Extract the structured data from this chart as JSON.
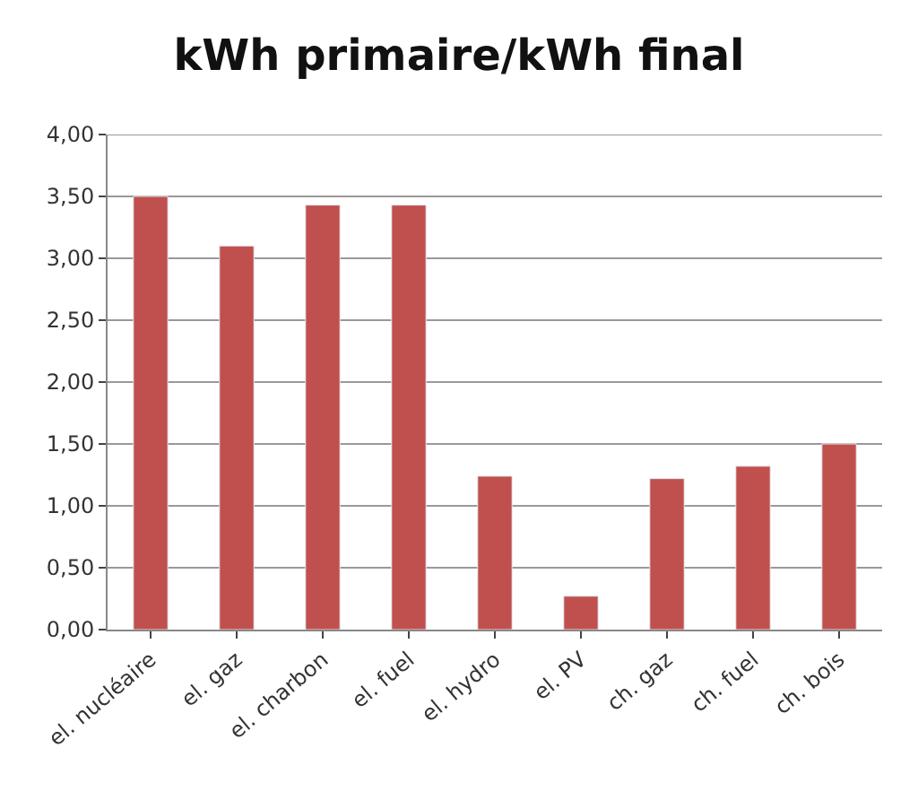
{
  "chart_data": {
    "type": "bar",
    "title": "kWh primaire/kWh final",
    "categories": [
      "el. nucléaire",
      "el. gaz",
      "el. charbon",
      "el. fuel",
      "el. hydro",
      "el. PV",
      "ch. gaz",
      "ch. fuel",
      "ch. bois"
    ],
    "values": [
      3.5,
      3.1,
      3.43,
      3.43,
      1.24,
      0.27,
      1.22,
      1.32,
      1.5
    ],
    "color": "#c0504d",
    "ylim": [
      0,
      4
    ],
    "yticks": [
      {
        "value": 0,
        "label": "0,00"
      },
      {
        "value": 0.5,
        "label": "0,50"
      },
      {
        "value": 1,
        "label": "1,00"
      },
      {
        "value": 1.5,
        "label": "1,50"
      },
      {
        "value": 2,
        "label": "2,00"
      },
      {
        "value": 2.5,
        "label": "2,50"
      },
      {
        "value": 3,
        "label": "3,00"
      },
      {
        "value": 3.5,
        "label": "3,50"
      },
      {
        "value": 4,
        "label": "4,00"
      }
    ],
    "grid": "y"
  }
}
